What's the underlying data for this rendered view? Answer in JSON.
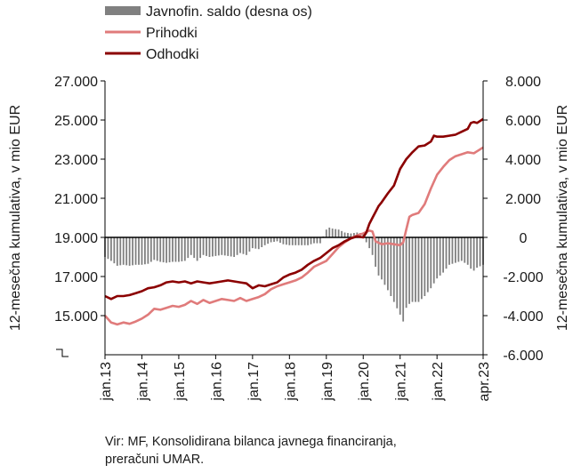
{
  "chart_data": {
    "type": "bar+line",
    "legend": {
      "position": "top-left",
      "entries": [
        {
          "label": "Javnofin. saldo (desna os)",
          "kind": "bar",
          "color": "#808080"
        },
        {
          "label": "Prihodki",
          "kind": "line",
          "color": "#e07b7b"
        },
        {
          "label": "Odhodki",
          "kind": "line",
          "color": "#8b0000"
        }
      ]
    },
    "ylabel_left": "12-mesečna kumulativa, v mio EUR",
    "ylabel_right": "12-mesečna kumulativa, v mio EUR",
    "y_left": {
      "min": 13000,
      "max": 27000,
      "ticks": [
        "27.000",
        "25.000",
        "23.000",
        "21.000",
        "19.000",
        "17.000",
        "15.000"
      ],
      "tick_values": [
        27000,
        25000,
        23000,
        21000,
        19000,
        17000,
        15000
      ]
    },
    "y_right": {
      "min": -6000,
      "max": 8000,
      "ticks": [
        "8.000",
        "6.000",
        "4.000",
        "2.000",
        "0",
        "-2.000",
        "-4.000",
        "-6.000"
      ],
      "tick_values": [
        8000,
        6000,
        4000,
        2000,
        0,
        -2000,
        -4000,
        -6000
      ]
    },
    "x_ticks": [
      "jan.13",
      "jan.14",
      "jan.15",
      "jan.16",
      "jan.17",
      "jan.18",
      "jan.19",
      "jan.20",
      "jan.21",
      "jan.22",
      "apr.23"
    ],
    "x_tick_months": [
      0,
      12,
      24,
      36,
      48,
      60,
      72,
      84,
      96,
      108,
      123
    ],
    "x_range_months": [
      0,
      123
    ],
    "series": [
      {
        "name": "Prihodki",
        "axis": "left",
        "color": "#e07b7b",
        "points": [
          [
            0,
            15000
          ],
          [
            2,
            14650
          ],
          [
            4,
            14550
          ],
          [
            6,
            14650
          ],
          [
            8,
            14580
          ],
          [
            10,
            14700
          ],
          [
            12,
            14850
          ],
          [
            14,
            15050
          ],
          [
            16,
            15350
          ],
          [
            18,
            15300
          ],
          [
            20,
            15400
          ],
          [
            22,
            15500
          ],
          [
            24,
            15450
          ],
          [
            26,
            15550
          ],
          [
            28,
            15750
          ],
          [
            30,
            15600
          ],
          [
            32,
            15800
          ],
          [
            34,
            15650
          ],
          [
            36,
            15750
          ],
          [
            38,
            15850
          ],
          [
            40,
            15800
          ],
          [
            42,
            15750
          ],
          [
            44,
            15900
          ],
          [
            46,
            15750
          ],
          [
            48,
            15850
          ],
          [
            50,
            15950
          ],
          [
            52,
            16100
          ],
          [
            54,
            16350
          ],
          [
            56,
            16500
          ],
          [
            58,
            16600
          ],
          [
            60,
            16700
          ],
          [
            62,
            16800
          ],
          [
            64,
            16950
          ],
          [
            66,
            17200
          ],
          [
            68,
            17500
          ],
          [
            70,
            17650
          ],
          [
            72,
            17800
          ],
          [
            74,
            18150
          ],
          [
            76,
            18500
          ],
          [
            78,
            18750
          ],
          [
            80,
            18950
          ],
          [
            82,
            19100
          ],
          [
            84,
            19200
          ],
          [
            86,
            19350
          ],
          [
            87,
            19300
          ],
          [
            88,
            18800
          ],
          [
            90,
            18650
          ],
          [
            92,
            18700
          ],
          [
            94,
            18650
          ],
          [
            96,
            18600
          ],
          [
            97,
            18750
          ],
          [
            98,
            19400
          ],
          [
            99,
            20050
          ],
          [
            100,
            20150
          ],
          [
            102,
            20250
          ],
          [
            104,
            20700
          ],
          [
            106,
            21500
          ],
          [
            108,
            22200
          ],
          [
            110,
            22600
          ],
          [
            112,
            22950
          ],
          [
            114,
            23150
          ],
          [
            116,
            23250
          ],
          [
            118,
            23350
          ],
          [
            120,
            23300
          ],
          [
            121,
            23400
          ],
          [
            123,
            23600
          ]
        ]
      },
      {
        "name": "Odhodki",
        "axis": "left",
        "color": "#8b0000",
        "points": [
          [
            0,
            16000
          ],
          [
            2,
            15850
          ],
          [
            4,
            16000
          ],
          [
            6,
            16000
          ],
          [
            8,
            16050
          ],
          [
            10,
            16150
          ],
          [
            12,
            16250
          ],
          [
            14,
            16400
          ],
          [
            16,
            16450
          ],
          [
            18,
            16550
          ],
          [
            20,
            16700
          ],
          [
            22,
            16750
          ],
          [
            24,
            16700
          ],
          [
            26,
            16750
          ],
          [
            28,
            16650
          ],
          [
            30,
            16750
          ],
          [
            32,
            16700
          ],
          [
            34,
            16650
          ],
          [
            36,
            16700
          ],
          [
            38,
            16750
          ],
          [
            40,
            16800
          ],
          [
            42,
            16750
          ],
          [
            44,
            16700
          ],
          [
            46,
            16650
          ],
          [
            48,
            16400
          ],
          [
            50,
            16550
          ],
          [
            52,
            16500
          ],
          [
            54,
            16600
          ],
          [
            56,
            16700
          ],
          [
            58,
            16950
          ],
          [
            60,
            17100
          ],
          [
            62,
            17200
          ],
          [
            64,
            17350
          ],
          [
            66,
            17600
          ],
          [
            68,
            17800
          ],
          [
            70,
            17950
          ],
          [
            72,
            18200
          ],
          [
            74,
            18450
          ],
          [
            76,
            18600
          ],
          [
            78,
            18800
          ],
          [
            80,
            18950
          ],
          [
            82,
            19050
          ],
          [
            84,
            19000
          ],
          [
            85,
            19250
          ],
          [
            86,
            19700
          ],
          [
            87,
            20000
          ],
          [
            88,
            20300
          ],
          [
            89,
            20600
          ],
          [
            90,
            20800
          ],
          [
            92,
            21250
          ],
          [
            94,
            21650
          ],
          [
            96,
            22500
          ],
          [
            98,
            23000
          ],
          [
            100,
            23350
          ],
          [
            102,
            23650
          ],
          [
            104,
            23700
          ],
          [
            106,
            23900
          ],
          [
            107,
            24200
          ],
          [
            108,
            24150
          ],
          [
            110,
            24150
          ],
          [
            112,
            24200
          ],
          [
            114,
            24250
          ],
          [
            116,
            24400
          ],
          [
            118,
            24550
          ],
          [
            119,
            24850
          ],
          [
            120,
            24900
          ],
          [
            121,
            24850
          ],
          [
            123,
            25050
          ]
        ]
      },
      {
        "name": "Javnofin. saldo (desna os)",
        "axis": "right",
        "kind": "bar",
        "color": "#808080",
        "points": [
          [
            0,
            -1000
          ],
          [
            2,
            -1200
          ],
          [
            4,
            -1450
          ],
          [
            6,
            -1400
          ],
          [
            8,
            -1450
          ],
          [
            10,
            -1400
          ],
          [
            12,
            -1400
          ],
          [
            14,
            -1350
          ],
          [
            16,
            -1150
          ],
          [
            18,
            -1250
          ],
          [
            20,
            -1300
          ],
          [
            22,
            -1250
          ],
          [
            24,
            -1250
          ],
          [
            26,
            -1200
          ],
          [
            28,
            -900
          ],
          [
            30,
            -1200
          ],
          [
            32,
            -900
          ],
          [
            34,
            -1000
          ],
          [
            36,
            -950
          ],
          [
            38,
            -900
          ],
          [
            40,
            -950
          ],
          [
            42,
            -1000
          ],
          [
            44,
            -800
          ],
          [
            46,
            -900
          ],
          [
            48,
            -550
          ],
          [
            50,
            -600
          ],
          [
            52,
            -400
          ],
          [
            54,
            -250
          ],
          [
            56,
            -200
          ],
          [
            58,
            -350
          ],
          [
            60,
            -400
          ],
          [
            62,
            -400
          ],
          [
            64,
            -400
          ],
          [
            66,
            -400
          ],
          [
            68,
            -300
          ],
          [
            70,
            -300
          ],
          [
            72,
            400
          ],
          [
            73,
            500
          ],
          [
            74,
            450
          ],
          [
            76,
            400
          ],
          [
            78,
            250
          ],
          [
            80,
            200
          ],
          [
            82,
            250
          ],
          [
            84,
            200
          ],
          [
            85,
            -250
          ],
          [
            86,
            -550
          ],
          [
            87,
            -900
          ],
          [
            88,
            -1500
          ],
          [
            89,
            -1950
          ],
          [
            90,
            -2150
          ],
          [
            92,
            -2700
          ],
          [
            94,
            -3300
          ],
          [
            96,
            -3950
          ],
          [
            97,
            -4300
          ],
          [
            98,
            -3600
          ],
          [
            99,
            -3400
          ],
          [
            100,
            -3300
          ],
          [
            102,
            -3300
          ],
          [
            104,
            -3000
          ],
          [
            106,
            -2600
          ],
          [
            108,
            -2100
          ],
          [
            110,
            -1800
          ],
          [
            112,
            -1400
          ],
          [
            114,
            -1300
          ],
          [
            116,
            -1200
          ],
          [
            118,
            -1400
          ],
          [
            119,
            -1600
          ],
          [
            120,
            -1700
          ],
          [
            121,
            -1550
          ],
          [
            123,
            -1400
          ]
        ]
      }
    ]
  },
  "source": {
    "line1": "Vir: MF, Konsolidirana bilanca javnega financiranja,",
    "line2": "preračuni UMAR."
  }
}
